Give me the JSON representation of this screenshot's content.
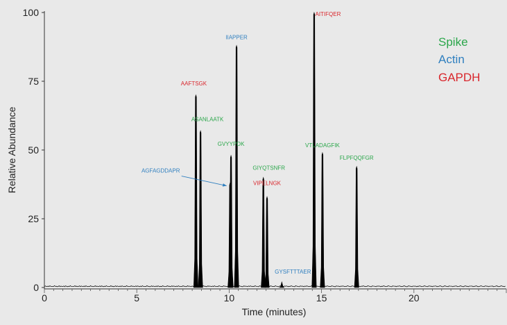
{
  "chart_data": {
    "type": "line",
    "title": "",
    "xlabel": "Time (minutes)",
    "ylabel": "Relative Abundance",
    "xlim": [
      0,
      25
    ],
    "ylim": [
      0,
      100
    ],
    "x_ticks": [
      0,
      5,
      10,
      15,
      20
    ],
    "y_ticks": [
      0,
      25,
      50,
      75,
      100
    ],
    "colors": {
      "Spike": "#2aa64a",
      "Actin": "#2f7fbf",
      "GAPDH": "#d9262c"
    },
    "legend": [
      {
        "name": "Spike",
        "color": "#2aa64a"
      },
      {
        "name": "Actin",
        "color": "#2f7fbf"
      },
      {
        "name": "GAPDH",
        "color": "#d9262c"
      }
    ],
    "peaks": [
      {
        "peptide": "AAFTSGK",
        "group": "GAPDH",
        "rt": 8.2,
        "intensity": 70
      },
      {
        "peptide": "ASANLAATK",
        "group": "Spike",
        "rt": 8.45,
        "intensity": 57
      },
      {
        "peptide": "AGFAGDDAPR",
        "group": "Actin",
        "rt": 10.05,
        "intensity": 38
      },
      {
        "peptide": "GVYYPDK",
        "group": "Spike",
        "rt": 10.1,
        "intensity": 48
      },
      {
        "peptide": "IIAPPER",
        "group": "Actin",
        "rt": 10.4,
        "intensity": 88
      },
      {
        "peptide": "GIYQTSNFR",
        "group": "Spike",
        "rt": 11.85,
        "intensity": 40
      },
      {
        "peptide": "VIPELNGK",
        "group": "GAPDH",
        "rt": 12.05,
        "intensity": 33
      },
      {
        "peptide": "GYSFTTTAER",
        "group": "Actin",
        "rt": 12.85,
        "intensity": 2
      },
      {
        "peptide": "AITIFQER",
        "group": "GAPDH",
        "rt": 14.6,
        "intensity": 100
      },
      {
        "peptide": "VTLADAGFIK",
        "group": "Spike",
        "rt": 15.05,
        "intensity": 49
      },
      {
        "peptide": "FLPFQQFGR",
        "group": "Spike",
        "rt": 16.9,
        "intensity": 44
      }
    ],
    "arrow_annotation": {
      "from_label": "AGFAGDDAPR",
      "to_peak": "AGFAGDDAPR"
    }
  }
}
